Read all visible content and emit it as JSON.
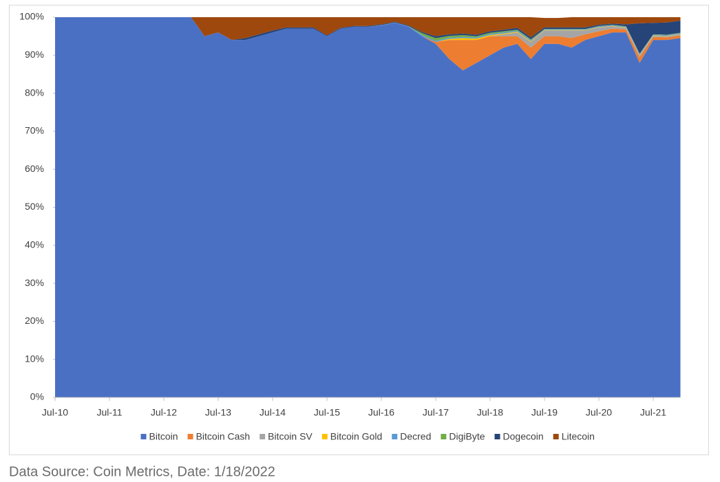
{
  "chart_data": {
    "type": "stacked_area",
    "x": [
      "Jul-10",
      "Oct-10",
      "Jan-11",
      "Apr-11",
      "Jul-11",
      "Oct-11",
      "Jan-12",
      "Apr-12",
      "Jul-12",
      "Oct-12",
      "Jan-13",
      "Apr-13",
      "Jul-13",
      "Oct-13",
      "Jan-14",
      "Apr-14",
      "Jul-14",
      "Oct-14",
      "Jan-15",
      "Apr-15",
      "Jul-15",
      "Oct-15",
      "Jan-16",
      "Apr-16",
      "Jul-16",
      "Oct-16",
      "Jan-17",
      "Apr-17",
      "Jul-17",
      "Oct-17",
      "Jan-18",
      "Apr-18",
      "Jul-18",
      "Oct-18",
      "Jan-19",
      "Apr-19",
      "Jul-19",
      "Oct-19",
      "Jan-20",
      "Apr-20",
      "Jul-20",
      "Oct-20",
      "Jan-21",
      "Apr-21",
      "Jul-21",
      "Oct-21",
      "Jan-22"
    ],
    "xticks": [
      "Jul-10",
      "Jul-11",
      "Jul-12",
      "Jul-13",
      "Jul-14",
      "Jul-15",
      "Jul-16",
      "Jul-17",
      "Jul-18",
      "Jul-19",
      "Jul-20",
      "Jul-21"
    ],
    "ylim": [
      0,
      100
    ],
    "yticks": [
      {
        "value": 0,
        "label": "0%"
      },
      {
        "value": 10,
        "label": "10%"
      },
      {
        "value": 20,
        "label": "20%"
      },
      {
        "value": 30,
        "label": "30%"
      },
      {
        "value": 40,
        "label": "40%"
      },
      {
        "value": 50,
        "label": "50%"
      },
      {
        "value": 60,
        "label": "60%"
      },
      {
        "value": 70,
        "label": "70%"
      },
      {
        "value": 80,
        "label": "80%"
      },
      {
        "value": 90,
        "label": "90%"
      },
      {
        "value": 100,
        "label": "100%"
      }
    ],
    "legend": "bottom",
    "series": [
      {
        "name": "Bitcoin",
        "color": "#4a70c4",
        "values": [
          100,
          100,
          100,
          100,
          100,
          100,
          100,
          100,
          100,
          100,
          100,
          95,
          96,
          94,
          94,
          95,
          96,
          97,
          97,
          97,
          95,
          97,
          97.5,
          97.5,
          97.8,
          98.5,
          97.5,
          95,
          93,
          89,
          86,
          88,
          90,
          92,
          93,
          89,
          93,
          93,
          92,
          94,
          95,
          96,
          96,
          88,
          94,
          94,
          94.5
        ]
      },
      {
        "name": "Bitcoin Cash",
        "color": "#ed7d31",
        "values": [
          0,
          0,
          0,
          0,
          0,
          0,
          0,
          0,
          0,
          0,
          0,
          0,
          0,
          0,
          0,
          0,
          0,
          0,
          0,
          0,
          0,
          0,
          0,
          0,
          0,
          0,
          0,
          0,
          0.5,
          5,
          8,
          6,
          5,
          3,
          2,
          3,
          2,
          2,
          2.5,
          1.5,
          1.3,
          1,
          0.8,
          1.5,
          0.8,
          0.7,
          0.7
        ]
      },
      {
        "name": "Bitcoin SV",
        "color": "#a5a5a5",
        "values": [
          0,
          0,
          0,
          0,
          0,
          0,
          0,
          0,
          0,
          0,
          0,
          0,
          0,
          0,
          0,
          0,
          0,
          0,
          0,
          0,
          0,
          0,
          0,
          0,
          0,
          0,
          0,
          0,
          0,
          0,
          0,
          0,
          0,
          0.5,
          1,
          1.5,
          1.5,
          1.5,
          2,
          1,
          1,
          0.6,
          0.4,
          0.5,
          0.3,
          0.3,
          0.3
        ]
      },
      {
        "name": "Bitcoin Gold",
        "color": "#ffc000",
        "values": [
          0,
          0,
          0,
          0,
          0,
          0,
          0,
          0,
          0,
          0,
          0,
          0,
          0,
          0,
          0,
          0,
          0,
          0,
          0,
          0,
          0,
          0,
          0,
          0,
          0,
          0,
          0,
          0,
          0,
          0.3,
          0.5,
          0.4,
          0.3,
          0.2,
          0.2,
          0.2,
          0.1,
          0.1,
          0.1,
          0.1,
          0.1,
          0.1,
          0.1,
          0.1,
          0.1,
          0.1,
          0.1
        ]
      },
      {
        "name": "Decred",
        "color": "#5b9bd5",
        "values": [
          0,
          0,
          0,
          0,
          0,
          0,
          0,
          0,
          0,
          0,
          0,
          0,
          0,
          0,
          0,
          0,
          0,
          0,
          0,
          0,
          0,
          0,
          0,
          0,
          0.1,
          0.1,
          0.1,
          0.3,
          0.3,
          0.3,
          0.3,
          0.3,
          0.3,
          0.3,
          0.3,
          0.3,
          0.2,
          0.2,
          0.2,
          0.2,
          0.2,
          0.2,
          0.2,
          0.2,
          0.2,
          0.2,
          0.2
        ]
      },
      {
        "name": "DigiByte",
        "color": "#70ad47",
        "values": [
          0,
          0,
          0,
          0,
          0,
          0,
          0,
          0,
          0,
          0,
          0,
          0,
          0,
          0,
          0,
          0,
          0,
          0,
          0,
          0,
          0,
          0,
          0,
          0,
          0,
          0,
          0,
          0.5,
          0.7,
          0.5,
          0.5,
          0.3,
          0.3,
          0.3,
          0.2,
          0.2,
          0.1,
          0.1,
          0.1,
          0.1,
          0.1,
          0.1,
          0.1,
          0.1,
          0.1,
          0.1,
          0.1
        ]
      },
      {
        "name": "Dogecoin",
        "color": "#264478",
        "values": [
          0,
          0,
          0,
          0,
          0,
          0,
          0,
          0,
          0,
          0,
          0,
          0,
          0,
          0,
          0.5,
          0.5,
          0.5,
          0.3,
          0.3,
          0.3,
          0.2,
          0.2,
          0.2,
          0.2,
          0.2,
          0.2,
          0.2,
          0.3,
          0.5,
          0.4,
          0.4,
          0.4,
          0.4,
          0.4,
          0.5,
          0.5,
          0.4,
          0.4,
          0.4,
          0.4,
          0.3,
          0.3,
          0.5,
          8,
          3,
          3.2,
          3.2
        ]
      },
      {
        "name": "Litecoin",
        "color": "#9e480e",
        "values": [
          0,
          0,
          0,
          0,
          0,
          0,
          0,
          0,
          0,
          0,
          0,
          5,
          4,
          6,
          5.5,
          4.5,
          3.5,
          2.7,
          2.7,
          2.7,
          4.8,
          2.8,
          2.3,
          2.3,
          1.9,
          1.2,
          2.2,
          3.9,
          5,
          4.5,
          4.3,
          4.6,
          3.7,
          3.3,
          2.8,
          5.3,
          2.5,
          2.5,
          2.7,
          2.7,
          2,
          1.7,
          1.9,
          1.6,
          1.5,
          1.4,
          0.9
        ]
      }
    ]
  },
  "footer": "Data Source: Coin Metrics, Date: 1/18/2022"
}
